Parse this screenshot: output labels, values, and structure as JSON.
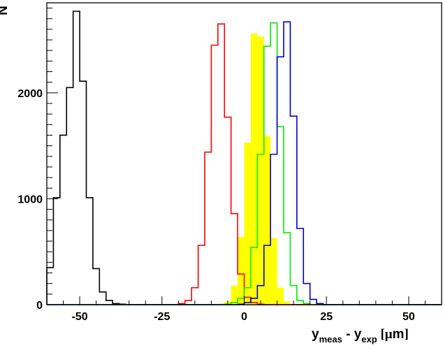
{
  "chart_data": {
    "type": "histogram",
    "title": "",
    "xlabel": {
      "main": "y",
      "sub_main": "meas",
      "minus": " - y",
      "sub_exp": "exp",
      "unit_open": " [",
      "unit_mu": "μ",
      "unit_m": "m",
      "unit_close": "]"
    },
    "ylabel": "N",
    "xlim": [
      -60,
      60
    ],
    "ylim": [
      0,
      2850
    ],
    "x_ticks": [
      -50,
      -25,
      0,
      25,
      50
    ],
    "x_tick_labels": [
      "-50",
      "-25",
      "0",
      "25",
      "50"
    ],
    "y_ticks": [
      0,
      1000,
      2000
    ],
    "y_tick_labels": [
      "0",
      "1000",
      "2000"
    ],
    "bin_width": 2,
    "series": [
      {
        "color": "#000000",
        "style": "step",
        "x_start": -60,
        "values": [
          350,
          1010,
          1600,
          2050,
          2770,
          2110,
          1010,
          340,
          120,
          40,
          10,
          5,
          0,
          0,
          0,
          0,
          0,
          0,
          0,
          0,
          0,
          0,
          0,
          0,
          0,
          0,
          0,
          0,
          0,
          0,
          0,
          0,
          0,
          0,
          0,
          0,
          0,
          0,
          0,
          0,
          0,
          0,
          0,
          0,
          0,
          0,
          0,
          0,
          0,
          0,
          0,
          0,
          0,
          0,
          0,
          0,
          0,
          0,
          0,
          0
        ]
      },
      {
        "color": "#ffff00",
        "style": "filled",
        "x_start": -60,
        "values": [
          0,
          0,
          0,
          0,
          0,
          0,
          0,
          0,
          0,
          0,
          0,
          0,
          0,
          0,
          0,
          0,
          0,
          0,
          0,
          0,
          0,
          0,
          0,
          0,
          0,
          0,
          10,
          30,
          180,
          640,
          1530,
          2560,
          2530,
          1590,
          630,
          160,
          30,
          5,
          0,
          0,
          0,
          0,
          0,
          0,
          0,
          0,
          0,
          0,
          0,
          0,
          0,
          0,
          0,
          0,
          0,
          0,
          0,
          0,
          0,
          0
        ]
      },
      {
        "color": "#ff0000",
        "style": "step",
        "x_start": -60,
        "values": [
          0,
          0,
          0,
          0,
          0,
          0,
          0,
          0,
          0,
          0,
          0,
          0,
          0,
          0,
          0,
          0,
          0,
          0,
          0,
          0,
          10,
          40,
          160,
          560,
          1440,
          2450,
          2650,
          1770,
          860,
          290,
          70,
          20,
          5,
          0,
          0,
          0,
          0,
          0,
          0,
          0,
          0,
          0,
          0,
          0,
          0,
          0,
          0,
          0,
          0,
          0,
          0,
          0,
          0,
          0,
          0,
          0,
          0,
          0,
          0,
          0
        ]
      },
      {
        "color": "#00ee00",
        "style": "step",
        "x_start": -60,
        "values": [
          0,
          0,
          0,
          0,
          0,
          0,
          0,
          0,
          0,
          0,
          0,
          0,
          0,
          0,
          0,
          0,
          0,
          0,
          0,
          0,
          0,
          0,
          0,
          0,
          0,
          0,
          0,
          5,
          20,
          60,
          160,
          540,
          1420,
          2440,
          2660,
          1680,
          680,
          180,
          40,
          10,
          0,
          0,
          0,
          0,
          0,
          0,
          0,
          0,
          0,
          0,
          0,
          0,
          0,
          0,
          0,
          0,
          0,
          0,
          0,
          0
        ]
      },
      {
        "color": "#0000cc",
        "style": "step",
        "x_start": -60,
        "values": [
          0,
          0,
          0,
          0,
          0,
          0,
          0,
          0,
          0,
          0,
          0,
          0,
          0,
          0,
          0,
          0,
          0,
          0,
          0,
          0,
          0,
          0,
          0,
          0,
          0,
          0,
          0,
          0,
          0,
          5,
          20,
          60,
          180,
          560,
          1420,
          2340,
          2670,
          1780,
          720,
          200,
          50,
          10,
          0,
          0,
          0,
          0,
          0,
          0,
          0,
          0,
          0,
          0,
          0,
          0,
          0,
          0,
          0,
          0,
          0,
          0
        ]
      }
    ]
  }
}
